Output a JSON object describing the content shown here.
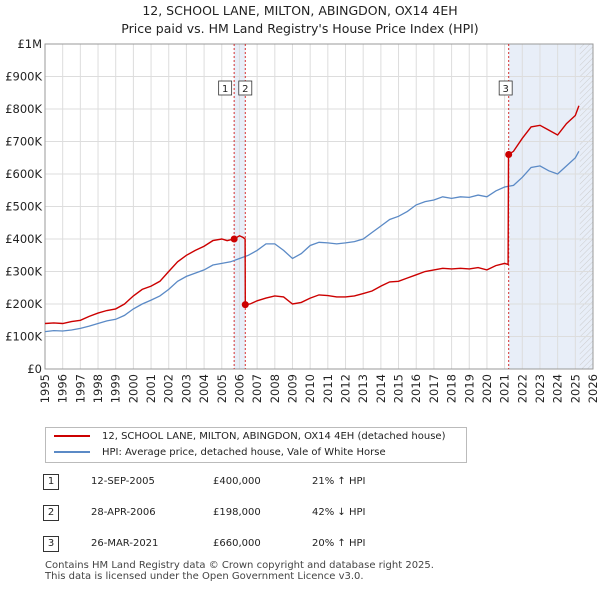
{
  "title": {
    "line1": "12, SCHOOL LANE, MILTON, ABINGDON, OX14 4EH",
    "line2": "Price paid vs. HM Land Registry's House Price Index (HPI)"
  },
  "legend": {
    "property": "12, SCHOOL LANE, MILTON, ABINGDON, OX14 4EH (detached house)",
    "hpi": "HPI: Average price, detached house, Vale of White Horse"
  },
  "sales": [
    {
      "num": "1",
      "date": "12-SEP-2005",
      "price": "£400,000",
      "hpi": "21% ↑ HPI"
    },
    {
      "num": "2",
      "date": "28-APR-2006",
      "price": "£198,000",
      "hpi": "42% ↓ HPI"
    },
    {
      "num": "3",
      "date": "26-MAR-2021",
      "price": "£660,000",
      "hpi": "20% ↑ HPI"
    }
  ],
  "footer": {
    "line1": "Contains HM Land Registry data © Crown copyright and database right 2025.",
    "line2": "This data is licensed under the Open Government Licence v3.0."
  },
  "colors": {
    "property": "#cc0000",
    "hpi": "#5b8ac6",
    "shade": "#e8eef8",
    "hatch": "#cccccc",
    "grid": "#dddddd"
  },
  "chart_data": {
    "type": "line",
    "title": "Price paid vs. HM Land Registry's House Price Index (HPI)",
    "xlim": [
      1995,
      2026
    ],
    "ylim": [
      0,
      1000000
    ],
    "x_ticks": [
      "1995",
      "1996",
      "1997",
      "1998",
      "1999",
      "2000",
      "2001",
      "2002",
      "2003",
      "2004",
      "2005",
      "2006",
      "2007",
      "2008",
      "2009",
      "2010",
      "2011",
      "2012",
      "2013",
      "2014",
      "2015",
      "2016",
      "2017",
      "2018",
      "2019",
      "2020",
      "2021",
      "2022",
      "2023",
      "2024",
      "2025",
      "2026"
    ],
    "y_ticks": [
      {
        "value": 0,
        "label": "£0"
      },
      {
        "value": 100000,
        "label": "£100K"
      },
      {
        "value": 200000,
        "label": "£200K"
      },
      {
        "value": 300000,
        "label": "£300K"
      },
      {
        "value": 400000,
        "label": "£400K"
      },
      {
        "value": 500000,
        "label": "£500K"
      },
      {
        "value": 600000,
        "label": "£600K"
      },
      {
        "value": 700000,
        "label": "£700K"
      },
      {
        "value": 800000,
        "label": "£800K"
      },
      {
        "value": 900000,
        "label": "£900K"
      },
      {
        "value": 1000000,
        "label": "£1M"
      }
    ],
    "series": [
      {
        "name": "12, SCHOOL LANE, MILTON, ABINGDON, OX14 4EH (detached house)",
        "points": [
          [
            1995.0,
            140000
          ],
          [
            1995.5,
            142000
          ],
          [
            1996.0,
            140000
          ],
          [
            1996.5,
            146000
          ],
          [
            1997.0,
            150000
          ],
          [
            1997.5,
            162000
          ],
          [
            1998.0,
            172000
          ],
          [
            1998.5,
            180000
          ],
          [
            1999.0,
            185000
          ],
          [
            1999.5,
            200000
          ],
          [
            2000.0,
            225000
          ],
          [
            2000.5,
            245000
          ],
          [
            2001.0,
            255000
          ],
          [
            2001.5,
            270000
          ],
          [
            2002.0,
            300000
          ],
          [
            2002.5,
            330000
          ],
          [
            2003.0,
            350000
          ],
          [
            2003.5,
            365000
          ],
          [
            2004.0,
            378000
          ],
          [
            2004.5,
            395000
          ],
          [
            2005.0,
            400000
          ],
          [
            2005.3,
            395000
          ],
          [
            2005.7,
            400000
          ],
          [
            2006.0,
            410000
          ],
          [
            2006.2,
            405000
          ],
          [
            2006.32,
            400000
          ],
          [
            2006.33,
            198000
          ],
          [
            2006.6,
            200000
          ],
          [
            2007.0,
            210000
          ],
          [
            2007.5,
            218000
          ],
          [
            2008.0,
            225000
          ],
          [
            2008.5,
            222000
          ],
          [
            2009.0,
            200000
          ],
          [
            2009.5,
            205000
          ],
          [
            2010.0,
            218000
          ],
          [
            2010.5,
            228000
          ],
          [
            2011.0,
            226000
          ],
          [
            2011.5,
            222000
          ],
          [
            2012.0,
            222000
          ],
          [
            2012.5,
            225000
          ],
          [
            2013.0,
            232000
          ],
          [
            2013.5,
            240000
          ],
          [
            2014.0,
            255000
          ],
          [
            2014.5,
            268000
          ],
          [
            2015.0,
            270000
          ],
          [
            2015.5,
            280000
          ],
          [
            2016.0,
            290000
          ],
          [
            2016.5,
            300000
          ],
          [
            2017.0,
            305000
          ],
          [
            2017.5,
            310000
          ],
          [
            2018.0,
            308000
          ],
          [
            2018.5,
            310000
          ],
          [
            2019.0,
            308000
          ],
          [
            2019.5,
            312000
          ],
          [
            2020.0,
            305000
          ],
          [
            2020.5,
            318000
          ],
          [
            2021.0,
            325000
          ],
          [
            2021.2,
            322000
          ],
          [
            2021.22,
            660000
          ],
          [
            2021.5,
            670000
          ],
          [
            2022.0,
            710000
          ],
          [
            2022.5,
            745000
          ],
          [
            2023.0,
            750000
          ],
          [
            2023.5,
            735000
          ],
          [
            2024.0,
            720000
          ],
          [
            2024.5,
            755000
          ],
          [
            2025.0,
            780000
          ],
          [
            2025.2,
            810000
          ]
        ]
      },
      {
        "name": "HPI: Average price, detached house, Vale of White Horse",
        "points": [
          [
            1995.0,
            115000
          ],
          [
            1995.5,
            118000
          ],
          [
            1996.0,
            117000
          ],
          [
            1996.5,
            120000
          ],
          [
            1997.0,
            125000
          ],
          [
            1997.5,
            132000
          ],
          [
            1998.0,
            140000
          ],
          [
            1998.5,
            148000
          ],
          [
            1999.0,
            153000
          ],
          [
            1999.5,
            165000
          ],
          [
            2000.0,
            185000
          ],
          [
            2000.5,
            200000
          ],
          [
            2001.0,
            212000
          ],
          [
            2001.5,
            225000
          ],
          [
            2002.0,
            245000
          ],
          [
            2002.5,
            270000
          ],
          [
            2003.0,
            285000
          ],
          [
            2003.5,
            295000
          ],
          [
            2004.0,
            305000
          ],
          [
            2004.5,
            320000
          ],
          [
            2005.0,
            325000
          ],
          [
            2005.5,
            330000
          ],
          [
            2006.0,
            340000
          ],
          [
            2006.5,
            350000
          ],
          [
            2007.0,
            365000
          ],
          [
            2007.5,
            385000
          ],
          [
            2008.0,
            385000
          ],
          [
            2008.5,
            365000
          ],
          [
            2009.0,
            340000
          ],
          [
            2009.5,
            355000
          ],
          [
            2010.0,
            380000
          ],
          [
            2010.5,
            390000
          ],
          [
            2011.0,
            388000
          ],
          [
            2011.5,
            385000
          ],
          [
            2012.0,
            388000
          ],
          [
            2012.5,
            392000
          ],
          [
            2013.0,
            400000
          ],
          [
            2013.5,
            420000
          ],
          [
            2014.0,
            440000
          ],
          [
            2014.5,
            460000
          ],
          [
            2015.0,
            470000
          ],
          [
            2015.5,
            485000
          ],
          [
            2016.0,
            505000
          ],
          [
            2016.5,
            515000
          ],
          [
            2017.0,
            520000
          ],
          [
            2017.5,
            530000
          ],
          [
            2018.0,
            525000
          ],
          [
            2018.5,
            530000
          ],
          [
            2019.0,
            528000
          ],
          [
            2019.5,
            535000
          ],
          [
            2020.0,
            530000
          ],
          [
            2020.5,
            548000
          ],
          [
            2021.0,
            560000
          ],
          [
            2021.5,
            565000
          ],
          [
            2022.0,
            590000
          ],
          [
            2022.5,
            620000
          ],
          [
            2023.0,
            625000
          ],
          [
            2023.5,
            610000
          ],
          [
            2024.0,
            600000
          ],
          [
            2024.5,
            625000
          ],
          [
            2025.0,
            650000
          ],
          [
            2025.2,
            670000
          ]
        ]
      }
    ],
    "sale_markers": [
      {
        "label": "1",
        "x": 2005.7,
        "y": 400000
      },
      {
        "label": "2",
        "x": 2006.33,
        "y": 198000
      },
      {
        "label": "3",
        "x": 2021.23,
        "y": 660000
      }
    ]
  }
}
